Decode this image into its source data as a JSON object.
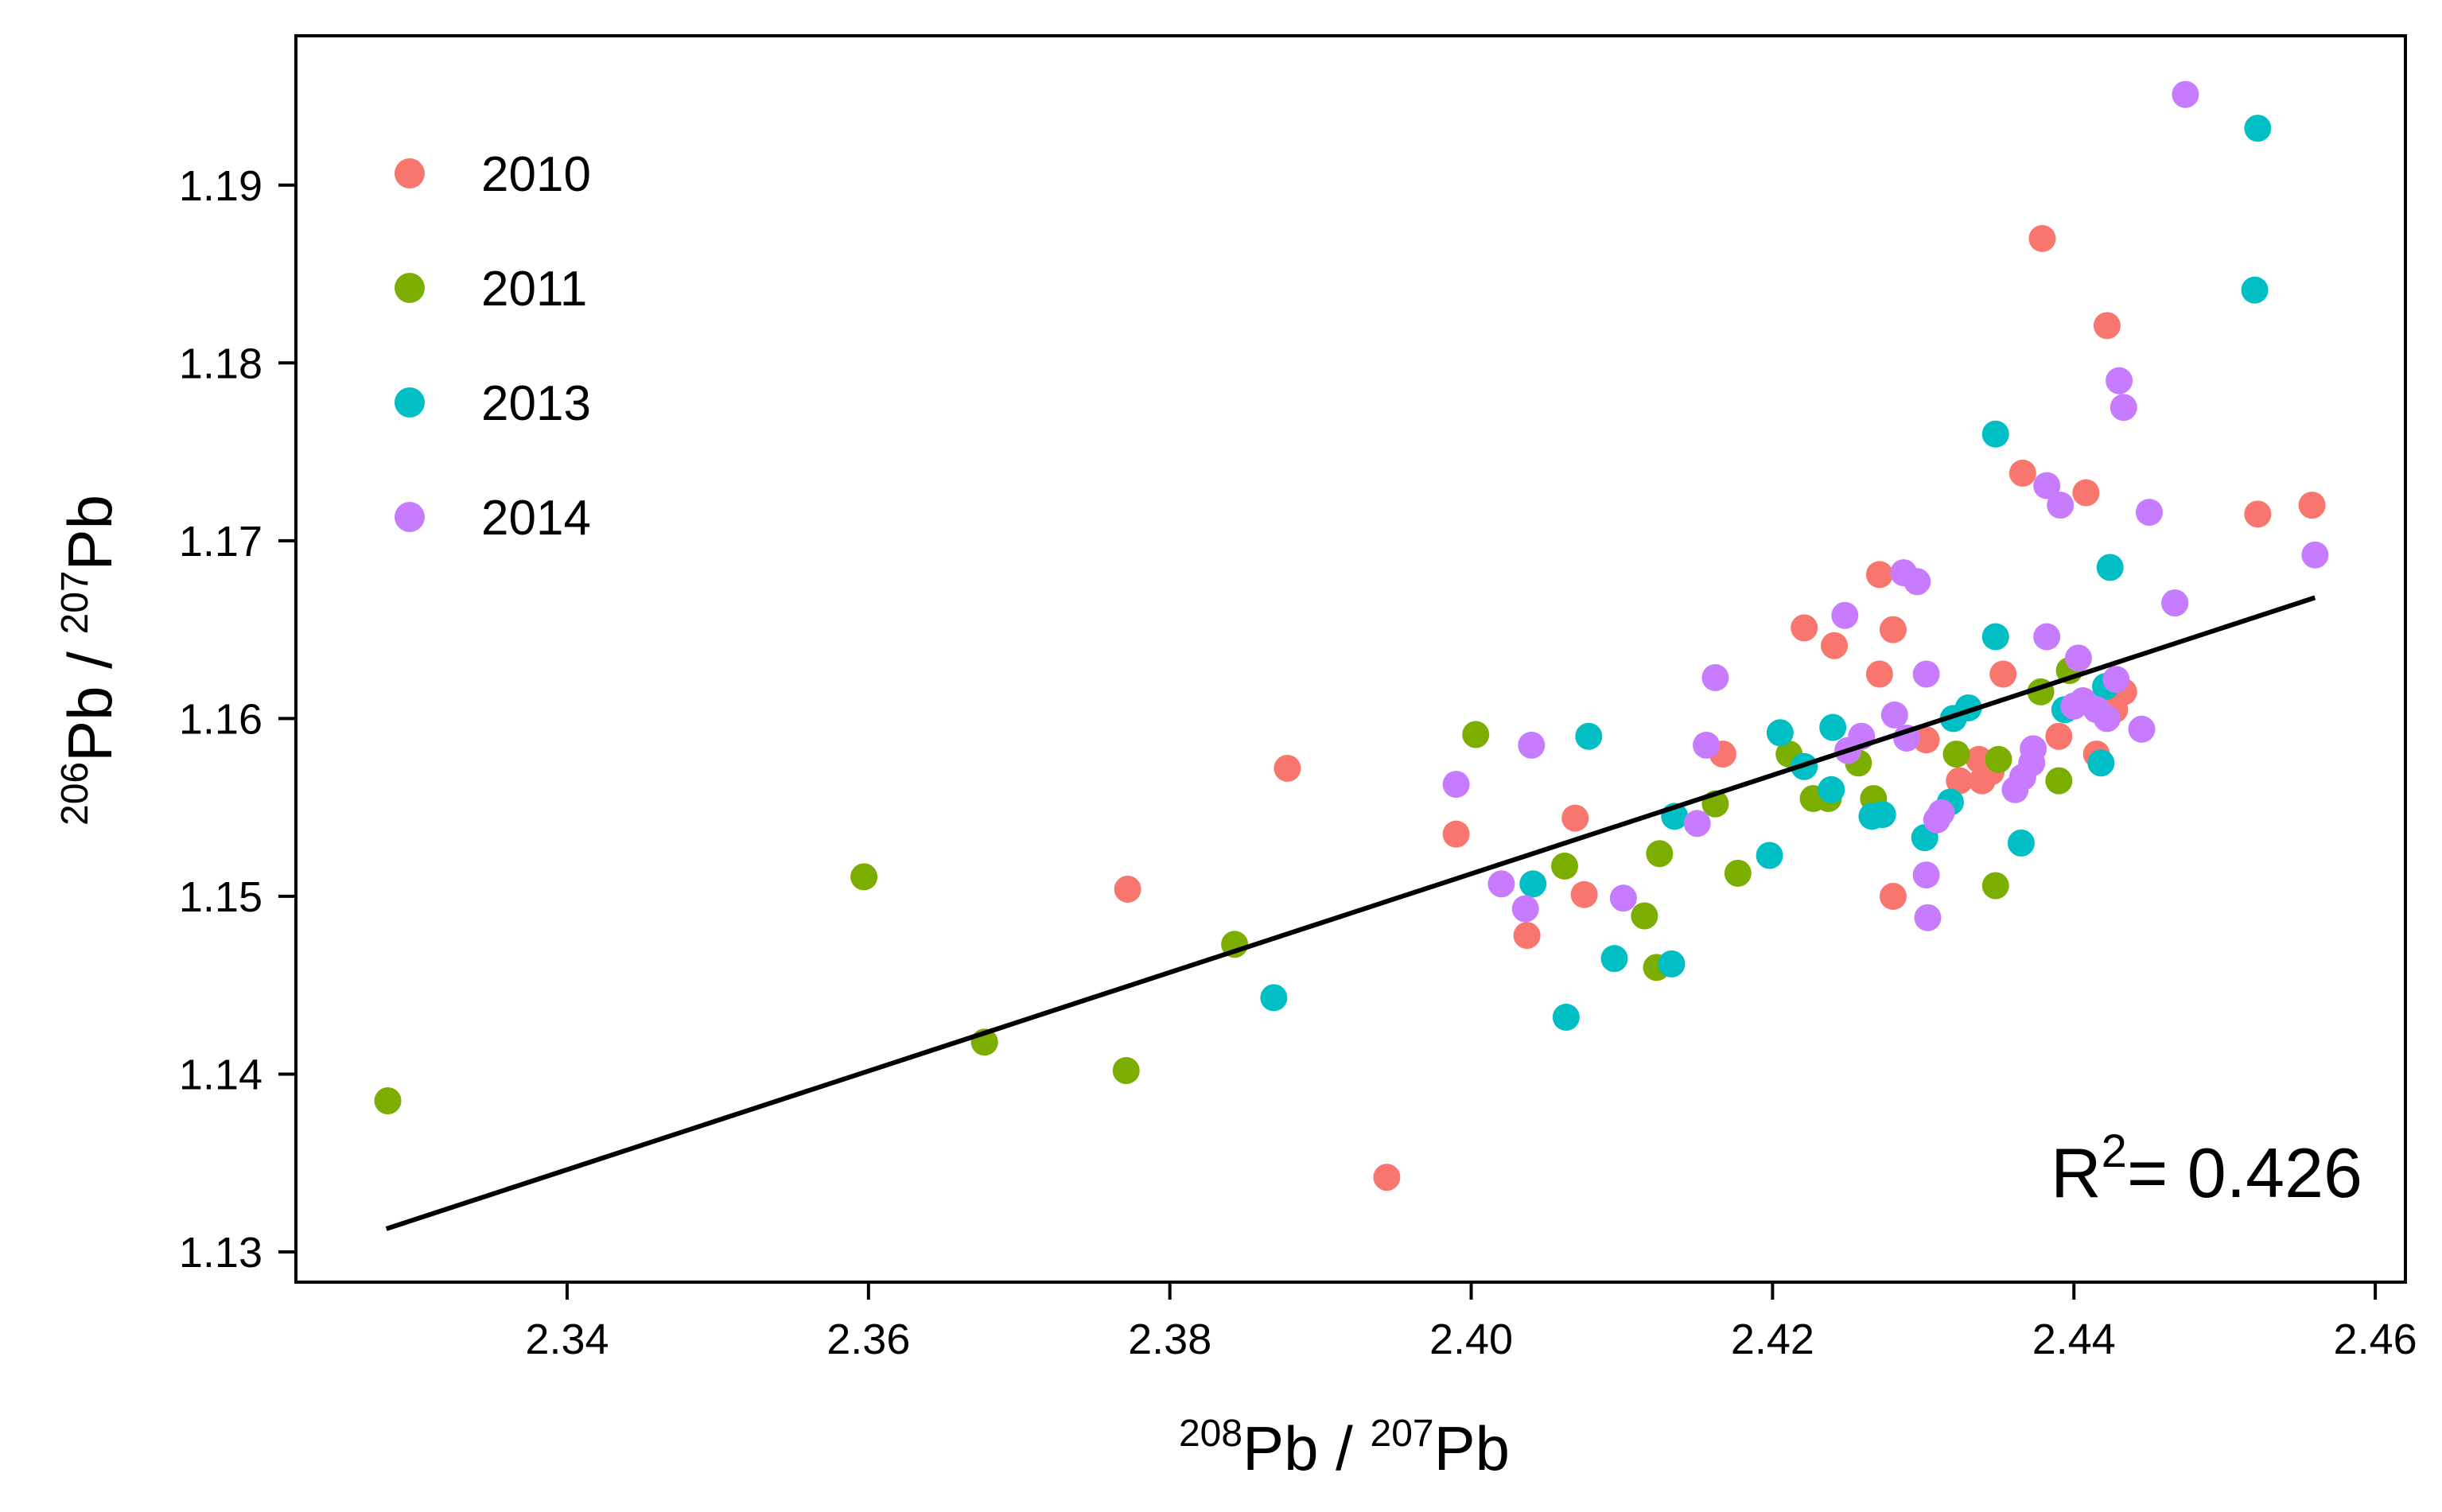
{
  "chart_data": {
    "type": "scatter",
    "xlabel": {
      "iso_a": "208",
      "iso_b": "207",
      "element": "Pb",
      "separator": " / "
    },
    "ylabel": {
      "iso_a": "206",
      "iso_b": "207",
      "element": "Pb",
      "separator": " / "
    },
    "xlim": [
      2.322,
      2.462
    ],
    "ylim": [
      1.1283,
      1.1984
    ],
    "x_ticks": [
      2.34,
      2.36,
      2.38,
      2.4,
      2.42,
      2.44,
      2.46
    ],
    "x_tick_labels": [
      "2.34",
      "2.36",
      "2.38",
      "2.40",
      "2.42",
      "2.44",
      "2.46"
    ],
    "y_ticks": [
      1.13,
      1.14,
      1.15,
      1.16,
      1.17,
      1.18,
      1.19
    ],
    "y_tick_labels": [
      "1.13",
      "1.14",
      "1.15",
      "1.16",
      "1.17",
      "1.18",
      "1.19"
    ],
    "grid": false,
    "legend_position": "top-left",
    "annotation": {
      "prefix": "R",
      "superscript": "2",
      "value": "= 0.426",
      "position": "bottom-right"
    },
    "regression_line": {
      "x": [
        2.328,
        2.456
      ],
      "y": [
        1.1313,
        1.1668
      ],
      "color": "#000000"
    },
    "series": [
      {
        "name": "2010",
        "color": "#F8766D",
        "points": [
          [
            2.3772,
            1.1504
          ],
          [
            2.3878,
            1.1572
          ],
          [
            2.3944,
            1.1342
          ],
          [
            2.399,
            1.1535
          ],
          [
            2.4037,
            1.1478
          ],
          [
            2.4069,
            1.1544
          ],
          [
            2.4075,
            1.1501
          ],
          [
            2.4167,
            1.158
          ],
          [
            2.4221,
            1.1651
          ],
          [
            2.4241,
            1.1641
          ],
          [
            2.4271,
            1.1681
          ],
          [
            2.4271,
            1.1625
          ],
          [
            2.428,
            1.165
          ],
          [
            2.428,
            1.15
          ],
          [
            2.4302,
            1.1588
          ],
          [
            2.4324,
            1.1565
          ],
          [
            2.4337,
            1.1577
          ],
          [
            2.4339,
            1.1565
          ],
          [
            2.4345,
            1.157
          ],
          [
            2.4353,
            1.1625
          ],
          [
            2.4366,
            1.1738
          ],
          [
            2.4379,
            1.187
          ],
          [
            2.439,
            1.159
          ],
          [
            2.4408,
            1.1727
          ],
          [
            2.4415,
            1.158
          ],
          [
            2.4422,
            1.1821
          ],
          [
            2.4427,
            1.1605
          ],
          [
            2.4433,
            1.1615
          ],
          [
            2.4522,
            1.1715
          ],
          [
            2.4558,
            1.172
          ]
        ]
      },
      {
        "name": "2011",
        "color": "#7CAE00",
        "points": [
          [
            2.3281,
            1.1385
          ],
          [
            2.3597,
            1.1511
          ],
          [
            2.3677,
            1.1418
          ],
          [
            2.3771,
            1.1402
          ],
          [
            2.3843,
            1.1473
          ],
          [
            2.4003,
            1.1591
          ],
          [
            2.4062,
            1.1517
          ],
          [
            2.4115,
            1.1489
          ],
          [
            2.4123,
            1.146
          ],
          [
            2.4125,
            1.1524
          ],
          [
            2.4162,
            1.1552
          ],
          [
            2.4177,
            1.1513
          ],
          [
            2.4211,
            1.158
          ],
          [
            2.4227,
            1.1555
          ],
          [
            2.4237,
            1.1555
          ],
          [
            2.4257,
            1.1575
          ],
          [
            2.4267,
            1.1555
          ],
          [
            2.4322,
            1.158
          ],
          [
            2.4348,
            1.1506
          ],
          [
            2.435,
            1.1577
          ],
          [
            2.4378,
            1.1615
          ],
          [
            2.439,
            1.1565
          ],
          [
            2.4397,
            1.1627
          ]
        ]
      },
      {
        "name": "2013",
        "color": "#00BFC4",
        "points": [
          [
            2.3869,
            1.1443
          ],
          [
            2.4041,
            1.1507
          ],
          [
            2.4063,
            1.1432
          ],
          [
            2.4078,
            1.159
          ],
          [
            2.4095,
            1.1465
          ],
          [
            2.4133,
            1.1462
          ],
          [
            2.4135,
            1.1545
          ],
          [
            2.4198,
            1.1523
          ],
          [
            2.4205,
            1.1592
          ],
          [
            2.4221,
            1.1573
          ],
          [
            2.4239,
            1.156
          ],
          [
            2.424,
            1.1595
          ],
          [
            2.4266,
            1.1545
          ],
          [
            2.4273,
            1.1546
          ],
          [
            2.4301,
            1.1533
          ],
          [
            2.4318,
            1.1553
          ],
          [
            2.432,
            1.16
          ],
          [
            2.433,
            1.1606
          ],
          [
            2.4348,
            1.1646
          ],
          [
            2.4348,
            1.176
          ],
          [
            2.4365,
            1.153
          ],
          [
            2.4394,
            1.1605
          ],
          [
            2.4418,
            1.1575
          ],
          [
            2.4421,
            1.1618
          ],
          [
            2.4424,
            1.1685
          ],
          [
            2.4467,
            1.1665
          ],
          [
            2.452,
            1.1841
          ],
          [
            2.4522,
            1.1932
          ]
        ]
      },
      {
        "name": "2014",
        "color": "#C77CFF",
        "points": [
          [
            2.399,
            1.1563
          ],
          [
            2.402,
            1.1507
          ],
          [
            2.4036,
            1.1493
          ],
          [
            2.404,
            1.1585
          ],
          [
            2.4101,
            1.1499
          ],
          [
            2.415,
            1.1541
          ],
          [
            2.4156,
            1.1585
          ],
          [
            2.4162,
            1.1623
          ],
          [
            2.4248,
            1.1658
          ],
          [
            2.425,
            1.1582
          ],
          [
            2.4259,
            1.159
          ],
          [
            2.4281,
            1.1602
          ],
          [
            2.4287,
            1.1682
          ],
          [
            2.4289,
            1.1589
          ],
          [
            2.4296,
            1.1677
          ],
          [
            2.4302,
            1.1625
          ],
          [
            2.4302,
            1.1512
          ],
          [
            2.4303,
            1.1488
          ],
          [
            2.4309,
            1.1543
          ],
          [
            2.4312,
            1.1547
          ],
          [
            2.4361,
            1.156
          ],
          [
            2.4366,
            1.1567
          ],
          [
            2.4372,
            1.1575
          ],
          [
            2.4373,
            1.1583
          ],
          [
            2.4382,
            1.1646
          ],
          [
            2.4382,
            1.1731
          ],
          [
            2.4391,
            1.172
          ],
          [
            2.44,
            1.1607
          ],
          [
            2.4403,
            1.1634
          ],
          [
            2.4406,
            1.161
          ],
          [
            2.4415,
            1.1605
          ],
          [
            2.4422,
            1.16
          ],
          [
            2.4428,
            1.1622
          ],
          [
            2.443,
            1.179
          ],
          [
            2.4433,
            1.1775
          ],
          [
            2.4445,
            1.1594
          ],
          [
            2.445,
            1.1716
          ],
          [
            2.4467,
            1.1665
          ],
          [
            2.4474,
            1.1951
          ],
          [
            2.456,
            1.1692
          ]
        ]
      }
    ]
  }
}
